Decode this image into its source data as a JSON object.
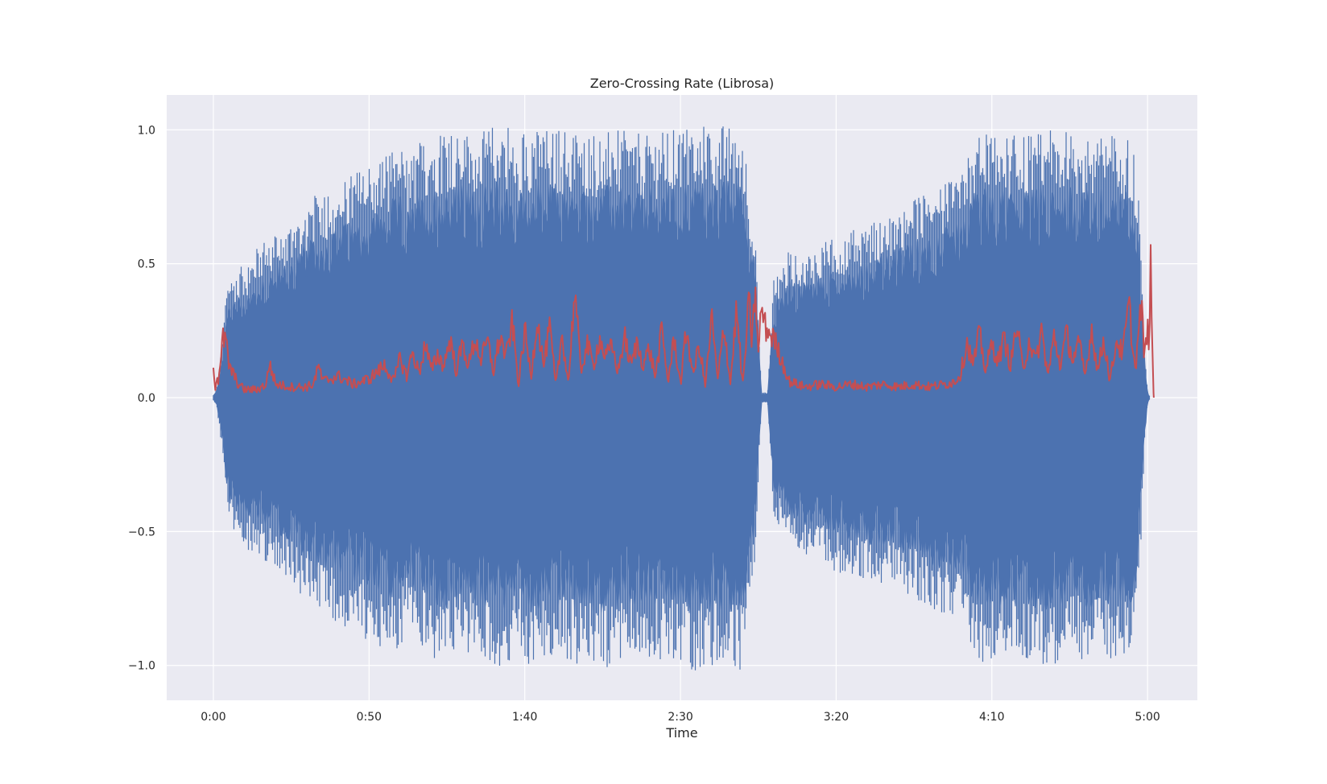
{
  "chart_data": {
    "type": "line",
    "title": "Zero-Crossing Rate (Librosa)",
    "xlabel": "Time",
    "ylabel": "",
    "xlim": [
      -15,
      316
    ],
    "ylim": [
      -1.13,
      1.13
    ],
    "x_ticks": [
      {
        "value": 0,
        "label": "0:00"
      },
      {
        "value": 50,
        "label": "0:50"
      },
      {
        "value": 100,
        "label": "1:40"
      },
      {
        "value": 150,
        "label": "2:30"
      },
      {
        "value": 200,
        "label": "3:20"
      },
      {
        "value": 250,
        "label": "4:10"
      },
      {
        "value": 300,
        "label": "5:00"
      }
    ],
    "y_ticks": [
      {
        "value": 1.0,
        "label": "1.0"
      },
      {
        "value": 0.5,
        "label": "0.5"
      },
      {
        "value": 0.0,
        "label": "0.0"
      },
      {
        "value": -0.5,
        "label": "−0.5"
      },
      {
        "value": -1.0,
        "label": "−1.0"
      }
    ],
    "grid": true,
    "series": [
      {
        "kind": "waveform-envelope",
        "color": "#4c72b0",
        "x": [
          0,
          1,
          2,
          3,
          4,
          5,
          8,
          12,
          15,
          18,
          21,
          24,
          27,
          30,
          33,
          36,
          39,
          42,
          45,
          48,
          51,
          54,
          57,
          60,
          63,
          65,
          70,
          75,
          80,
          85,
          90,
          95,
          97,
          100,
          102,
          105,
          110,
          120,
          130,
          140,
          150,
          155,
          160,
          170,
          174,
          176,
          178,
          180,
          182,
          185,
          190,
          200,
          210,
          220,
          230,
          240,
          245,
          250,
          260,
          270,
          280,
          290,
          295,
          297,
          299,
          300,
          301
        ],
        "upper": [
          0.01,
          0.03,
          0.12,
          0.22,
          0.38,
          0.46,
          0.48,
          0.52,
          0.58,
          0.6,
          0.62,
          0.64,
          0.7,
          0.72,
          0.76,
          0.78,
          0.8,
          0.82,
          0.84,
          0.86,
          0.88,
          0.9,
          0.93,
          0.95,
          0.88,
          0.95,
          0.98,
          1.02,
          1.0,
          0.98,
          1.02,
          1.03,
          0.9,
          1.02,
          1.02,
          1.0,
          1.01,
          0.99,
          1.0,
          0.98,
          1.01,
          1.02,
          1.02,
          1.02,
          0.6,
          0.02,
          0.02,
          0.45,
          0.5,
          0.55,
          0.55,
          0.6,
          0.65,
          0.7,
          0.78,
          0.82,
          1.0,
          0.98,
          0.98,
          1.0,
          0.99,
          0.98,
          0.98,
          0.8,
          0.2,
          0.02,
          0.0
        ],
        "lower": [
          -0.01,
          -0.03,
          -0.12,
          -0.22,
          -0.38,
          -0.5,
          -0.52,
          -0.58,
          -0.6,
          -0.62,
          -0.64,
          -0.68,
          -0.72,
          -0.76,
          -0.8,
          -0.82,
          -0.84,
          -0.86,
          -0.88,
          -0.9,
          -0.92,
          -0.93,
          -0.94,
          -0.95,
          -0.85,
          -0.93,
          -0.98,
          -1.02,
          -0.95,
          -0.98,
          -1.0,
          -1.02,
          -0.9,
          -1.0,
          -1.02,
          -1.0,
          -0.98,
          -1.02,
          -1.0,
          -0.99,
          -1.01,
          -1.02,
          -1.01,
          -1.02,
          -0.6,
          -0.02,
          -0.02,
          -0.45,
          -0.5,
          -0.55,
          -0.6,
          -0.65,
          -0.68,
          -0.72,
          -0.78,
          -0.85,
          -1.0,
          -0.98,
          -0.99,
          -1.0,
          -0.98,
          -0.98,
          -0.97,
          -0.8,
          -0.2,
          -0.02,
          0.0
        ]
      },
      {
        "kind": "zcr",
        "color": "#c44e52",
        "x": [
          0,
          0.5,
          1,
          1.5,
          2,
          2.5,
          3,
          4,
          5,
          8,
          10,
          14,
          17,
          18,
          20,
          25,
          30,
          32,
          34,
          35,
          40,
          45,
          50,
          55,
          58,
          60,
          62,
          64,
          66,
          68,
          70,
          72,
          74,
          76,
          78,
          80,
          82,
          84,
          86,
          88,
          90,
          92,
          94,
          96,
          98,
          100,
          102,
          104,
          106,
          108,
          110,
          112,
          114,
          116,
          118,
          120,
          122,
          124,
          126,
          128,
          130,
          132,
          134,
          136,
          138,
          140,
          142,
          144,
          146,
          148,
          150,
          152,
          154,
          156,
          158,
          160,
          162,
          164,
          166,
          168,
          170,
          172,
          173,
          174,
          175,
          176,
          177,
          178,
          180,
          185,
          190,
          195,
          200,
          205,
          210,
          215,
          220,
          225,
          230,
          235,
          238,
          240,
          242,
          244,
          246,
          248,
          250,
          252,
          254,
          256,
          258,
          260,
          262,
          264,
          266,
          268,
          270,
          272,
          274,
          276,
          278,
          280,
          282,
          284,
          286,
          288,
          290,
          292,
          294,
          296,
          298,
          299,
          300,
          300.5,
          301,
          301.5,
          302
        ],
        "y": [
          0.14,
          0.03,
          0.08,
          0.06,
          0.12,
          0.15,
          0.22,
          0.21,
          0.12,
          0.05,
          0.03,
          0.03,
          0.05,
          0.13,
          0.05,
          0.04,
          0.04,
          0.05,
          0.12,
          0.06,
          0.08,
          0.05,
          0.07,
          0.12,
          0.06,
          0.15,
          0.08,
          0.17,
          0.09,
          0.2,
          0.1,
          0.16,
          0.12,
          0.22,
          0.1,
          0.2,
          0.12,
          0.22,
          0.14,
          0.21,
          0.1,
          0.23,
          0.15,
          0.28,
          0.05,
          0.25,
          0.08,
          0.3,
          0.12,
          0.26,
          0.04,
          0.24,
          0.05,
          0.4,
          0.1,
          0.2,
          0.12,
          0.22,
          0.15,
          0.19,
          0.1,
          0.23,
          0.12,
          0.2,
          0.13,
          0.18,
          0.08,
          0.25,
          0.06,
          0.22,
          0.05,
          0.26,
          0.08,
          0.2,
          0.04,
          0.3,
          0.06,
          0.28,
          0.05,
          0.33,
          0.04,
          0.36,
          0.2,
          0.42,
          0.15,
          0.35,
          0.27,
          0.25,
          0.22,
          0.06,
          0.04,
          0.05,
          0.04,
          0.05,
          0.04,
          0.05,
          0.04,
          0.05,
          0.04,
          0.05,
          0.06,
          0.09,
          0.21,
          0.12,
          0.24,
          0.1,
          0.2,
          0.14,
          0.22,
          0.12,
          0.27,
          0.1,
          0.22,
          0.13,
          0.25,
          0.08,
          0.23,
          0.12,
          0.24,
          0.14,
          0.2,
          0.08,
          0.26,
          0.1,
          0.22,
          0.06,
          0.22,
          0.16,
          0.35,
          0.1,
          0.35,
          0.15,
          0.25,
          0.22,
          0.48,
          0.18,
          0.0
        ]
      }
    ]
  }
}
